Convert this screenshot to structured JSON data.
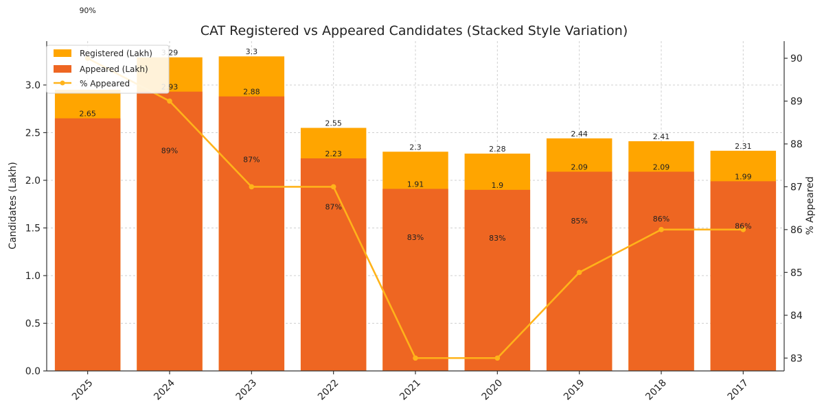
{
  "chart_data": {
    "type": "bar",
    "title": "CAT Registered vs Appeared Candidates (Stacked Style Variation)",
    "categories": [
      "2025",
      "2024",
      "2023",
      "2022",
      "2021",
      "2020",
      "2019",
      "2018",
      "2017"
    ],
    "series": [
      {
        "name": "Registered (Lakh)",
        "values": [
          2.95,
          3.29,
          3.3,
          2.55,
          2.3,
          2.28,
          2.44,
          2.41,
          2.31
        ],
        "color": "#FFA500"
      },
      {
        "name": "Appeared (Lakh)",
        "values": [
          2.65,
          2.93,
          2.88,
          2.23,
          1.91,
          1.9,
          2.09,
          2.09,
          1.99
        ],
        "color": "#EE6622"
      }
    ],
    "registered_labels": [
      "",
      "3.29",
      "3.3",
      "2.55",
      "2.3",
      "2.28",
      "2.44",
      "2.41",
      "2.31"
    ],
    "appeared_labels": [
      "2.65",
      "2.93",
      "2.88",
      "2.23",
      "1.91",
      "1.9",
      "2.09",
      "2.09",
      "1.99"
    ],
    "line_series": {
      "name": "% Appeared",
      "values": [
        90,
        89,
        87,
        87,
        83,
        83,
        85,
        86,
        86
      ],
      "color": "#FFB31A"
    },
    "pct_labels": [
      "90%",
      "89%",
      "87%",
      "87%",
      "83%",
      "83%",
      "85%",
      "86%",
      "86%"
    ],
    "xlabel": "",
    "ylabel": "Candidates (Lakh)",
    "y2label": "% Appeared",
    "ylim": [
      0,
      3.46
    ],
    "y2lim": [
      82.7,
      90.4
    ],
    "yticks": [
      "0.0",
      "0.5",
      "1.0",
      "1.5",
      "2.0",
      "2.5",
      "3.0"
    ],
    "y2ticks": [
      "83",
      "84",
      "85",
      "86",
      "87",
      "88",
      "89",
      "90"
    ],
    "grid": true,
    "legend_position": "top-left"
  }
}
